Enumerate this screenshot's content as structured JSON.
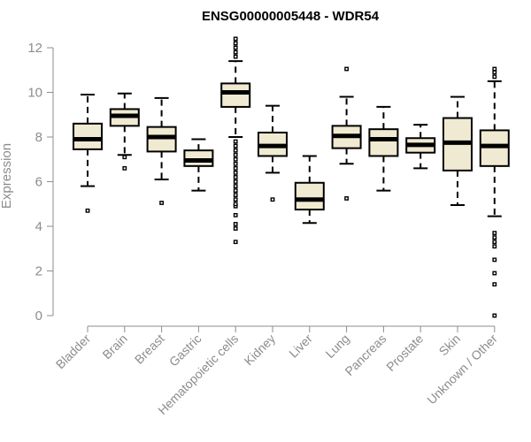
{
  "chart_data": {
    "type": "box",
    "title": "ENSG00000005448 - WDR54",
    "ylabel": "Expression",
    "xlabel": "",
    "ylim": [
      0,
      12
    ],
    "yticks": [
      0,
      2,
      4,
      6,
      8,
      10,
      12
    ],
    "grid": false,
    "box_fill": "#f0ead2",
    "categories": [
      "Bladder",
      "Brain",
      "Breast",
      "Gastric",
      "Hematopoietic cells",
      "Kidney",
      "Liver",
      "Lung",
      "Pancreas",
      "Prostate",
      "Skin",
      "Unknown / Other"
    ],
    "boxes": [
      {
        "lw": 5.8,
        "q1": 7.45,
        "median": 7.9,
        "q3": 8.6,
        "uw": 9.9,
        "outliers": [
          4.7
        ]
      },
      {
        "lw": 7.2,
        "q1": 8.5,
        "median": 8.95,
        "q3": 9.25,
        "uw": 9.95,
        "outliers": [
          6.6,
          7.1
        ]
      },
      {
        "lw": 6.1,
        "q1": 7.35,
        "median": 8.0,
        "q3": 8.45,
        "uw": 9.75,
        "outliers": [
          5.05
        ]
      },
      {
        "lw": 5.6,
        "q1": 6.7,
        "median": 6.95,
        "q3": 7.4,
        "uw": 7.9,
        "outliers": []
      },
      {
        "lw": 8.0,
        "q1": 9.35,
        "median": 10.0,
        "q3": 10.4,
        "uw": 11.4,
        "outliers": [
          3.3,
          3.9,
          4.1,
          4.5,
          4.9,
          5.0,
          5.2,
          5.4,
          5.6,
          5.8,
          6.0,
          6.2,
          6.4,
          6.6,
          6.8,
          7.0,
          7.2,
          7.4,
          7.6,
          7.8,
          11.6,
          11.8,
          12.0,
          12.2,
          12.4
        ]
      },
      {
        "lw": 6.4,
        "q1": 7.15,
        "median": 7.6,
        "q3": 8.2,
        "uw": 9.4,
        "outliers": [
          5.2
        ]
      },
      {
        "lw": 4.15,
        "q1": 4.75,
        "median": 5.2,
        "q3": 5.95,
        "uw": 7.15,
        "outliers": []
      },
      {
        "lw": 6.8,
        "q1": 7.5,
        "median": 8.05,
        "q3": 8.5,
        "uw": 9.8,
        "outliers": [
          5.25,
          11.05
        ]
      },
      {
        "lw": 5.6,
        "q1": 7.15,
        "median": 7.9,
        "q3": 8.35,
        "uw": 9.35,
        "outliers": []
      },
      {
        "lw": 6.6,
        "q1": 7.3,
        "median": 7.65,
        "q3": 7.95,
        "uw": 8.55,
        "outliers": []
      },
      {
        "lw": 4.95,
        "q1": 6.5,
        "median": 7.75,
        "q3": 8.85,
        "uw": 9.8,
        "outliers": []
      },
      {
        "lw": 4.45,
        "q1": 6.7,
        "median": 7.6,
        "q3": 8.3,
        "uw": 10.5,
        "outliers": [
          0.0,
          1.4,
          1.9,
          2.5,
          3.1,
          3.3,
          3.5,
          3.7,
          10.7,
          10.9,
          11.05
        ]
      }
    ]
  }
}
